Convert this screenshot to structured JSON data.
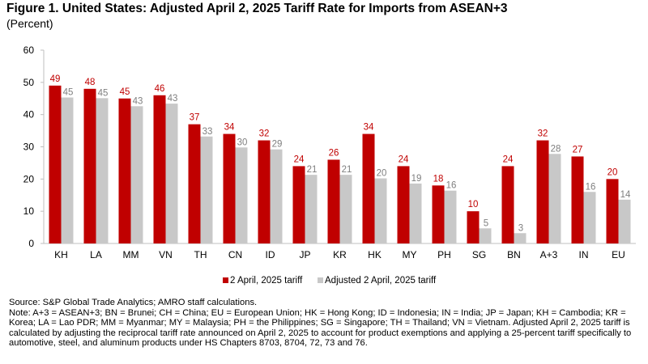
{
  "figure": {
    "title": "Figure 1. United States: Adjusted April 2, 2025 Tariff Rate for Imports from ASEAN+3",
    "subtitle": "(Percent)"
  },
  "colors": {
    "series1": "#c00000",
    "series2": "#c8c8c8",
    "label1": "#c00000",
    "label2": "#7f7f7f",
    "axis": "#bfbfbf"
  },
  "chart_data": {
    "type": "bar",
    "title": "",
    "xlabel": "",
    "ylabel": "",
    "ylim": [
      0,
      60
    ],
    "yticks": [
      0,
      10,
      20,
      30,
      40,
      50,
      60
    ],
    "grid": false,
    "legend_position": "bottom",
    "categories": [
      "KH",
      "LA",
      "MM",
      "VN",
      "TH",
      "CN",
      "ID",
      "JP",
      "KR",
      "HK",
      "MY",
      "PH",
      "SG",
      "BN",
      "A+3",
      "IN",
      "EU"
    ],
    "series": [
      {
        "name": "2 April, 2025 tariff",
        "values": [
          49,
          48,
          45,
          46,
          37,
          34,
          32,
          24,
          26,
          34,
          24,
          18,
          10,
          24,
          32,
          27,
          20
        ],
        "labels": [
          "49",
          "48",
          "45",
          "46",
          "37",
          "34",
          "32",
          "24",
          "26",
          "34",
          "24",
          "18",
          "10",
          "24",
          "32",
          "27",
          "20"
        ]
      },
      {
        "name": "Adjusted 2 April, 2025 tariff",
        "values": [
          45.3,
          45.1,
          42.6,
          43.4,
          33.2,
          29.8,
          29.2,
          21.3,
          21.3,
          20.2,
          18.6,
          16.4,
          4.7,
          3.2,
          27.8,
          16,
          13.6
        ],
        "labels": [
          "45",
          "45",
          "43",
          "43",
          "33",
          "30",
          "29",
          "21",
          "21",
          "20",
          "19",
          "16",
          "5",
          "3",
          "28",
          "16",
          "14"
        ]
      }
    ]
  },
  "notes": {
    "source": "Source: S&P Global Trade Analytics; AMRO staff calculations.",
    "note": "Note: A+3 = ASEAN+3; BN = Brunei; CH = China; EU = European Union; HK = Hong Kong; ID = Indonesia; IN = India; JP = Japan; KH = Cambodia; KR = Korea; LA = Lao PDR; MM = Myanmar; MY = Malaysia; PH = the Philippines; SG = Singapore; TH = Thailand; VN = Vietnam. Adjusted April 2, 2025 tariff is calculated by adjusting the reciprocal tariff rate announced on April 2, 2025 to account for product exemptions and applying a 25-percent tariff specifically to automotive, steel, and aluminum products under HS Chapters 8703, 8704, 72, 73 and 76."
  }
}
